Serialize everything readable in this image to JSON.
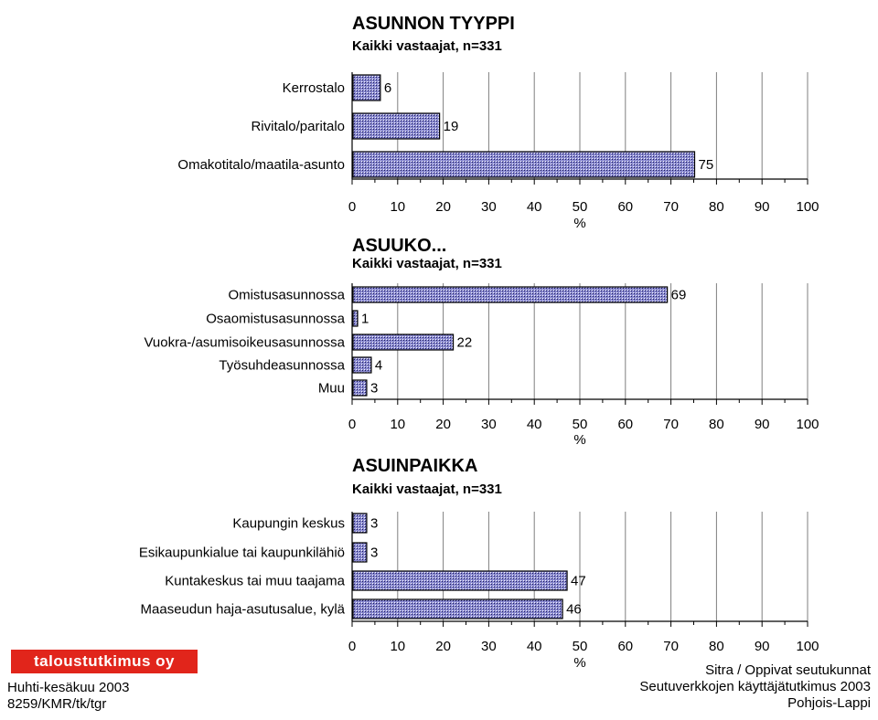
{
  "chart_data": [
    {
      "type": "bar",
      "title": "ASUNNON TYYPPI",
      "subtitle": "Kaikki vastaajat, n=331",
      "categories": [
        "Kerrostalo",
        "Rivitalo/paritalo",
        "Omakotitalo/maatila-asunto"
      ],
      "values": [
        6,
        19,
        75
      ],
      "xlabel": "%",
      "xlim": [
        0,
        100
      ],
      "xticks": [
        0,
        10,
        20,
        30,
        40,
        50,
        60,
        70,
        80,
        90,
        100
      ],
      "orientation": "horizontal",
      "grid": true
    },
    {
      "type": "bar",
      "title": "ASUUKO...",
      "subtitle": "Kaikki vastaajat, n=331",
      "categories": [
        "Omistusasunnossa",
        "Osaomistusasunnossa",
        "Vuokra-/asumisoikeusasunnossa",
        "Työsuhdeasunnossa",
        "Muu"
      ],
      "values": [
        69,
        1,
        22,
        4,
        3
      ],
      "xlabel": "%",
      "xlim": [
        0,
        100
      ],
      "xticks": [
        0,
        10,
        20,
        30,
        40,
        50,
        60,
        70,
        80,
        90,
        100
      ],
      "orientation": "horizontal",
      "grid": true
    },
    {
      "type": "bar",
      "title": "ASUINPAIKKA",
      "subtitle": "Kaikki vastaajat, n=331",
      "categories": [
        "Kaupungin keskus",
        "Esikaupunkialue tai kaupunkilähiö",
        "Kuntakeskus tai muu taajama",
        "Maaseudun haja-asutusalue, kylä"
      ],
      "values": [
        3,
        3,
        47,
        46
      ],
      "xlabel": "%",
      "xlim": [
        0,
        100
      ],
      "xticks": [
        0,
        10,
        20,
        30,
        40,
        50,
        60,
        70,
        80,
        90,
        100
      ],
      "orientation": "horizontal",
      "grid": true
    }
  ],
  "style": {
    "bar_color": "#8a8ad0",
    "bar_outline": "#000000",
    "grid_color": "#7f7f7f"
  },
  "logo_text": "taloustutkimus oy",
  "footer": {
    "left": [
      "Huhti-kesäkuu 2003",
      "8259/KMR/tk/tgr"
    ],
    "right": [
      "Sitra / Oppivat seutukunnat",
      "Seutuverkkojen käyttäjätutkimus 2003",
      "Pohjois-Lappi"
    ]
  }
}
